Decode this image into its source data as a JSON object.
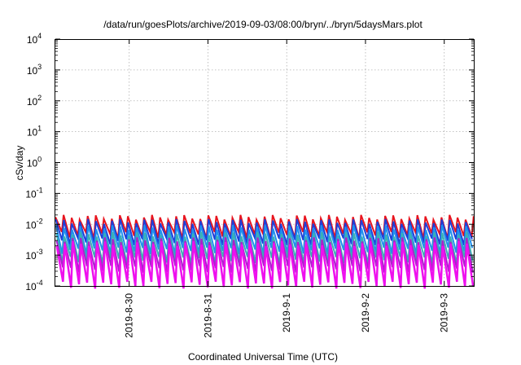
{
  "chart_data": {
    "type": "line",
    "title": "/data/run/goesPlots/archive/2019-09-03/08:00/bryn/../bryn/5daysMars.plot",
    "xlabel": "Coordinated Universal Time (UTC)",
    "ylabel": "cSv/day",
    "yscale": "log",
    "ylim": [
      0.0001,
      10000
    ],
    "xlim": [
      "2019-08-29T01:30",
      "2019-09-03T09:00"
    ],
    "grid": true,
    "y_ticks": [
      {
        "base": "10",
        "exp": "-4",
        "value": 0.0001
      },
      {
        "base": "10",
        "exp": "-3",
        "value": 0.001
      },
      {
        "base": "10",
        "exp": "-2",
        "value": 0.01
      },
      {
        "base": "10",
        "exp": "-1",
        "value": 0.1
      },
      {
        "base": "10",
        "exp": "0",
        "value": 1
      },
      {
        "base": "10",
        "exp": "1",
        "value": 10
      },
      {
        "base": "10",
        "exp": "2",
        "value": 100
      },
      {
        "base": "10",
        "exp": "3",
        "value": 1000
      },
      {
        "base": "10",
        "exp": "4",
        "value": 10000
      }
    ],
    "x_ticks": [
      {
        "label": "2019-8-30",
        "time": "2019-08-30T00:00"
      },
      {
        "label": "2019-8-31",
        "time": "2019-08-31T00:00"
      },
      {
        "label": "2019-9-1",
        "time": "2019-09-01T00:00"
      },
      {
        "label": "2019-9-2",
        "time": "2019-09-02T00:00"
      },
      {
        "label": "2019-9-3",
        "time": "2019-09-03T00:00"
      }
    ],
    "sawtooth_period_hours": 2.45,
    "series": [
      {
        "color": "#e8141e",
        "peak": 0.017,
        "trough": 0.0045,
        "width": 2
      },
      {
        "color": "#1f3fd8",
        "peak": 0.0125,
        "trough": 0.0028,
        "width": 2
      },
      {
        "color": "#2090ee",
        "peak": 0.008,
        "trough": 0.0014,
        "width": 2
      },
      {
        "color": "#3cb0b4",
        "peak": 0.0048,
        "trough": 0.0007,
        "width": 2
      },
      {
        "color": "#aa22cc",
        "peak": 0.0032,
        "trough": 0.00036,
        "width": 2
      },
      {
        "color": "#ee10ee",
        "peak": 0.0024,
        "trough": 0.00011,
        "width": 2.5
      }
    ]
  }
}
